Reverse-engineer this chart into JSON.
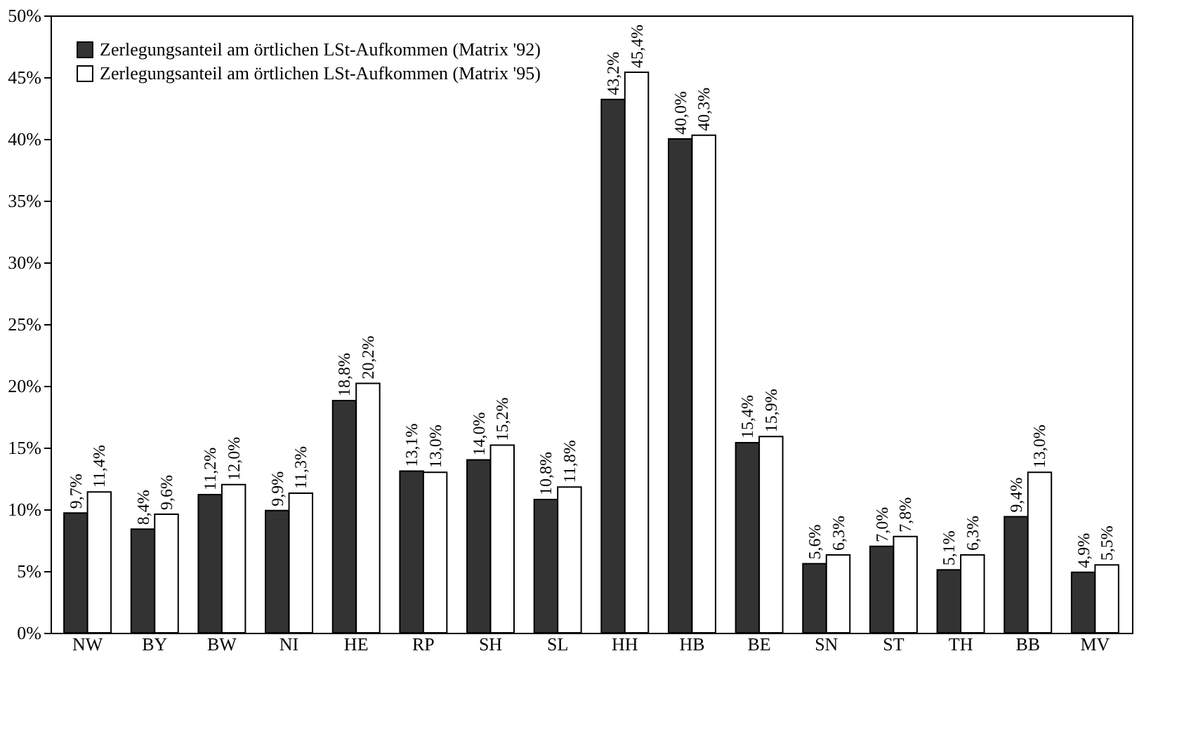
{
  "chart_data": {
    "type": "bar",
    "categories": [
      "NW",
      "BY",
      "BW",
      "NI",
      "HE",
      "RP",
      "SH",
      "SL",
      "HH",
      "HB",
      "BE",
      "SN",
      "ST",
      "TH",
      "BB",
      "MV"
    ],
    "series": [
      {
        "name": "Zerlegungsanteil am örtlichen LSt-Aufkommen (Matrix '92)",
        "color": "#333333",
        "values": [
          9.7,
          8.4,
          11.2,
          9.9,
          18.8,
          13.1,
          14.0,
          10.8,
          43.2,
          40.0,
          15.4,
          5.6,
          7.0,
          5.1,
          9.4,
          4.9
        ],
        "value_labels": [
          "9,7%",
          "8,4%",
          "11,2%",
          "9,9%",
          "18,8%",
          "13,1%",
          "14,0%",
          "10,8%",
          "43,2%",
          "40,0%",
          "15,4%",
          "5,6%",
          "7,0%",
          "5,1%",
          "9,4%",
          "4,9%"
        ]
      },
      {
        "name": "Zerlegungsanteil am örtlichen LSt-Aufkommen (Matrix '95)",
        "color": "#ffffff",
        "values": [
          11.4,
          9.6,
          12.0,
          11.3,
          20.2,
          13.0,
          15.2,
          11.8,
          45.4,
          40.3,
          15.9,
          6.3,
          7.8,
          6.3,
          13.0,
          5.5
        ],
        "value_labels": [
          "11,4%",
          "9,6%",
          "12,0%",
          "11,3%",
          "20,2%",
          "13,0%",
          "15,2%",
          "11,8%",
          "45,4%",
          "40,3%",
          "15,9%",
          "6,3%",
          "7,8%",
          "6,3%",
          "13,0%",
          "5,5%"
        ]
      }
    ],
    "ylim": [
      0,
      50
    ],
    "yticks": [
      {
        "value": 0,
        "label": "0%"
      },
      {
        "value": 5,
        "label": "5%"
      },
      {
        "value": 10,
        "label": "10%"
      },
      {
        "value": 15,
        "label": "15%"
      },
      {
        "value": 20,
        "label": "20%"
      },
      {
        "value": 25,
        "label": "25%"
      },
      {
        "value": 30,
        "label": "30%"
      },
      {
        "value": 35,
        "label": "35%"
      },
      {
        "value": 40,
        "label": "40%"
      },
      {
        "value": 45,
        "label": "45%"
      },
      {
        "value": 50,
        "label": "50%"
      }
    ],
    "legend": "top left",
    "grid": false
  }
}
